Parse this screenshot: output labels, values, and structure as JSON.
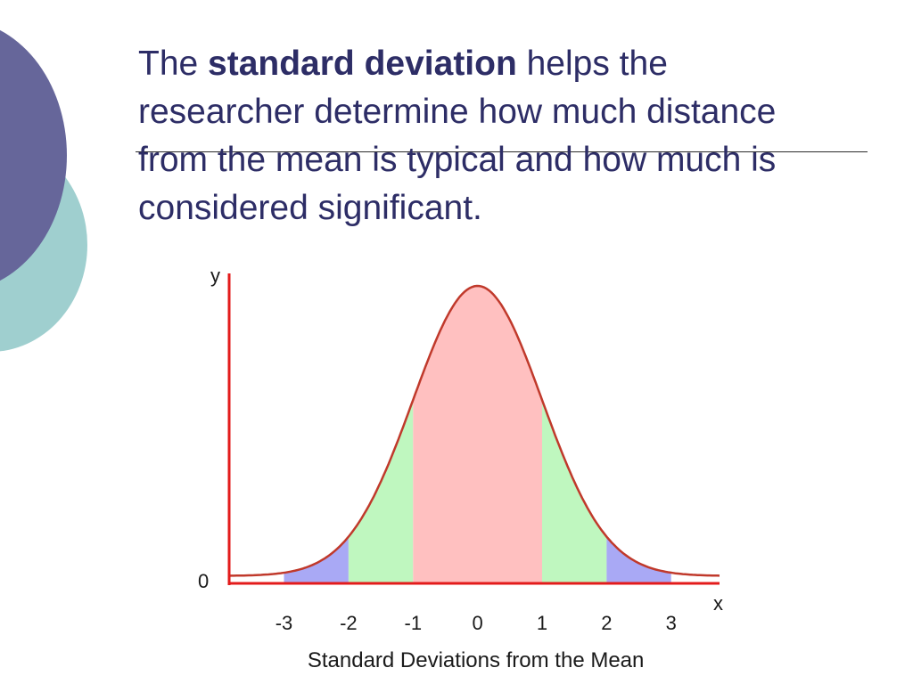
{
  "slide": {
    "text_before": "The ",
    "text_bold": "standard deviation",
    "text_after": " helps the researcher determine how much distance from the mean is typical and how much is considered significant."
  },
  "chart_data": {
    "type": "area",
    "curve": "normal-distribution",
    "xlabel": "Standard Deviations from the Mean",
    "x_axis_letter": "x",
    "y_axis_letter": "y",
    "y_origin_label": "0",
    "xlim": [
      -3.85,
      3.75
    ],
    "x_ticks": [
      "-3",
      "-2",
      "-1",
      "0",
      "1",
      "2",
      "3"
    ],
    "x_tick_values": [
      -3,
      -2,
      -1,
      0,
      1,
      2,
      3
    ],
    "bands": [
      {
        "from": -3,
        "to": -2,
        "color": "#a9a9f5"
      },
      {
        "from": -2,
        "to": -1,
        "color": "#bff7bf"
      },
      {
        "from": -1,
        "to": 1,
        "color": "#ffc0c0"
      },
      {
        "from": 1,
        "to": 2,
        "color": "#bff7bf"
      },
      {
        "from": 2,
        "to": 3,
        "color": "#a9a9f5"
      }
    ],
    "curve_color": "#c0392b",
    "axis_color": "#e31b1b",
    "grid": false,
    "legend": "none"
  }
}
